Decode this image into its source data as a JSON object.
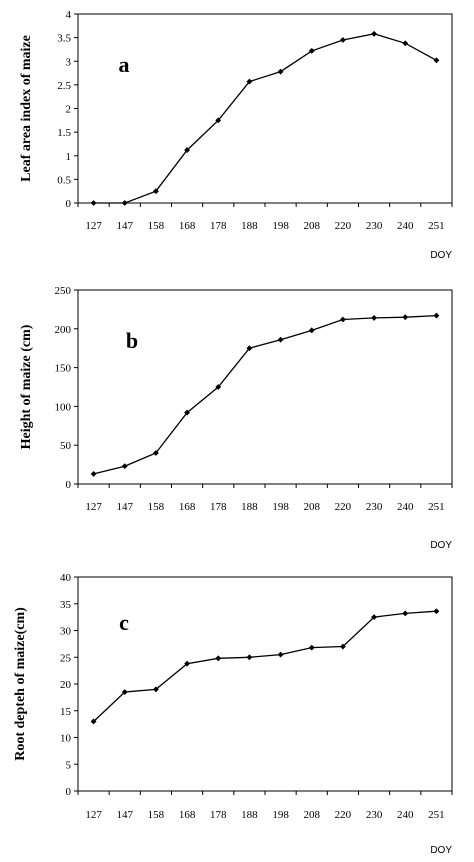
{
  "chart_data": [
    {
      "type": "line",
      "panel_label": "a",
      "ylabel": "Leaf area index of maize",
      "xlabel": "DOY",
      "categories": [
        "127",
        "147",
        "158",
        "168",
        "178",
        "188",
        "198",
        "208",
        "220",
        "230",
        "240",
        "251"
      ],
      "yticks": [
        "0",
        "0.5",
        "1",
        "1.5",
        "2",
        "2.5",
        "3",
        "3.5",
        "4"
      ],
      "ylim": [
        0,
        4
      ],
      "series": [
        {
          "values": [
            0,
            0,
            0.25,
            1.12,
            1.75,
            2.57,
            2.78,
            3.22,
            3.45,
            3.58,
            3.38,
            3.02
          ]
        }
      ],
      "grid": false,
      "color": "#000000"
    },
    {
      "type": "line",
      "panel_label": "b",
      "ylabel": "Height of maize (cm)",
      "xlabel": "DOY",
      "categories": [
        "127",
        "147",
        "158",
        "168",
        "178",
        "188",
        "198",
        "208",
        "220",
        "230",
        "240",
        "251"
      ],
      "yticks": [
        "0",
        "50",
        "100",
        "150",
        "200",
        "250"
      ],
      "ylim": [
        0,
        250
      ],
      "series": [
        {
          "values": [
            13,
            23,
            40,
            92,
            125,
            175,
            186,
            198,
            212,
            214,
            215,
            217
          ]
        }
      ],
      "grid": false,
      "color": "#000000"
    },
    {
      "type": "line",
      "panel_label": "c",
      "ylabel": "Root depteh of maize(cm)",
      "xlabel": "DOY",
      "categories": [
        "127",
        "147",
        "158",
        "168",
        "178",
        "188",
        "198",
        "208",
        "220",
        "230",
        "240",
        "251"
      ],
      "yticks": [
        "0",
        "5",
        "10",
        "15",
        "20",
        "25",
        "30",
        "35",
        "40"
      ],
      "ylim": [
        0,
        40
      ],
      "series": [
        {
          "values": [
            13,
            18.5,
            19,
            23.8,
            24.8,
            25,
            25.5,
            26.8,
            27,
            32.5,
            33.2,
            33.6
          ]
        }
      ],
      "grid": false,
      "color": "#000000"
    }
  ]
}
